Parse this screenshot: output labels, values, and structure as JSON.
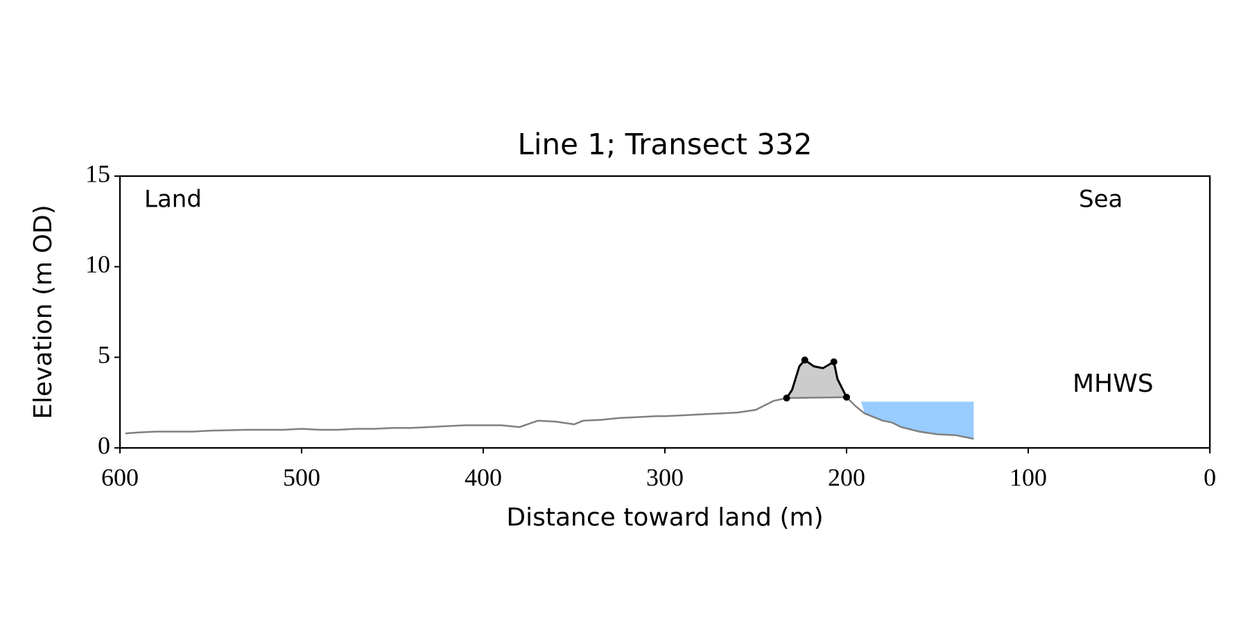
{
  "chart_data": {
    "type": "line",
    "title": "Line 1; Transect 332",
    "xlabel": "Distance toward land (m)",
    "ylabel": "Elevation (m OD)",
    "annotations": {
      "land": "Land",
      "sea": "Sea",
      "mhws": "MHWS"
    },
    "xlim": [
      600,
      0
    ],
    "ylim": [
      0,
      15
    ],
    "xticks": [
      600,
      500,
      400,
      300,
      200,
      100,
      0
    ],
    "yticks": [
      0,
      5,
      10,
      15
    ],
    "series": [
      {
        "color": "#808080",
        "x": [
          597,
          590,
          580,
          560,
          550,
          530,
          510,
          500,
          490,
          480,
          470,
          460,
          450,
          440,
          430,
          420,
          410,
          400,
          390,
          380,
          370,
          360,
          350,
          345,
          335,
          325,
          315,
          305,
          300,
          290,
          280,
          270,
          260,
          250,
          240,
          233,
          200,
          195,
          190,
          180,
          175,
          170,
          160,
          150,
          140,
          135,
          130
        ],
        "values": [
          0.8,
          0.85,
          0.9,
          0.9,
          0.95,
          1.0,
          1.0,
          1.05,
          1.0,
          1.0,
          1.05,
          1.05,
          1.1,
          1.1,
          1.15,
          1.2,
          1.25,
          1.25,
          1.25,
          1.15,
          1.5,
          1.45,
          1.3,
          1.5,
          1.55,
          1.65,
          1.7,
          1.75,
          1.75,
          1.8,
          1.85,
          1.9,
          1.95,
          2.1,
          2.6,
          2.75,
          2.8,
          2.3,
          1.9,
          1.5,
          1.4,
          1.15,
          0.9,
          0.75,
          0.7,
          0.6,
          0.5
        ]
      },
      {
        "color": "#000000",
        "fill": "#cccccc",
        "x": [
          233,
          230,
          226,
          223,
          218,
          213,
          207,
          205,
          200
        ],
        "values": [
          2.75,
          3.2,
          4.5,
          4.85,
          4.5,
          4.4,
          4.75,
          3.8,
          2.8
        ],
        "markers": [
          0,
          3,
          6,
          8
        ]
      }
    ],
    "mhws": {
      "level": 2.55,
      "x": [
        192,
        130
      ],
      "color": "#99ccff",
      "label_color": "#6699cc"
    }
  }
}
